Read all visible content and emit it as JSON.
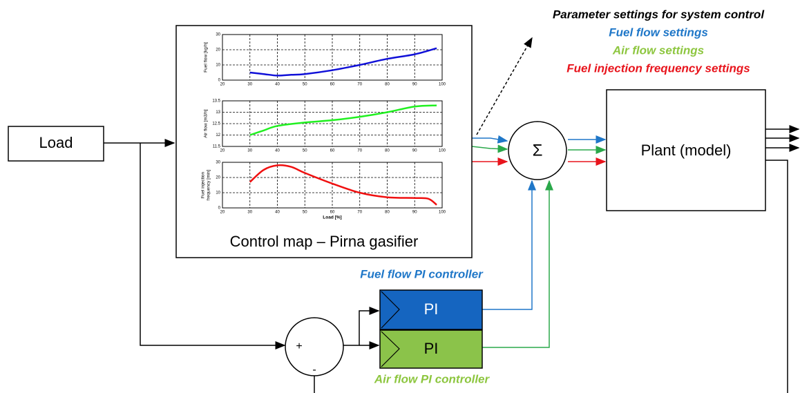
{
  "load": "Load",
  "plant": "Plant (model)",
  "sum_symbol": "Σ",
  "plus": "+",
  "minus": "-",
  "settings": {
    "title": "Parameter settings for system control",
    "fuel": "Fuel flow settings",
    "air": "Air flow settings",
    "injection": "Fuel injection frequency settings"
  },
  "controllers": {
    "fuel_box": "PI",
    "fuel_label": "Fuel flow PI controller",
    "air_box": "PI",
    "air_label": "Air flow PI controller"
  },
  "control_map": {
    "title": "Control map – Pirna gasifier",
    "charts": [
      {
        "type": "line",
        "ylabel": [
          "Fuel flow [kg/h]"
        ],
        "color": "#1010d8",
        "xlim": [
          20,
          100
        ],
        "xticks": [
          20,
          30,
          40,
          50,
          60,
          70,
          80,
          90,
          100
        ],
        "ylim": [
          0,
          30
        ],
        "yticks": [
          0,
          10,
          20,
          30
        ],
        "grid": true,
        "x": [
          30,
          35,
          40,
          45,
          50,
          60,
          70,
          80,
          90,
          98
        ],
        "values": [
          5,
          4,
          3,
          3.5,
          4,
          6.5,
          10,
          14,
          17,
          21
        ]
      },
      {
        "type": "line",
        "ylabel": [
          "Air flow [m3/h]"
        ],
        "color": "#20f020",
        "xlim": [
          20,
          100
        ],
        "xticks": [
          20,
          30,
          40,
          50,
          60,
          70,
          80,
          90,
          100
        ],
        "ylim": [
          11.5,
          13.5
        ],
        "yticks": [
          11.5,
          12,
          12.5,
          13,
          13.5
        ],
        "grid": true,
        "x": [
          30,
          35,
          40,
          50,
          60,
          70,
          80,
          90,
          98
        ],
        "values": [
          12.0,
          12.2,
          12.4,
          12.55,
          12.65,
          12.8,
          13.0,
          13.25,
          13.3
        ]
      },
      {
        "type": "line",
        "ylabel": [
          "Fuel injection",
          "frequency [min]"
        ],
        "xlabel": "Load [%]",
        "color": "#f01010",
        "xlim": [
          20,
          100
        ],
        "xticks": [
          20,
          30,
          40,
          50,
          60,
          70,
          80,
          90,
          100
        ],
        "ylim": [
          0,
          30
        ],
        "yticks": [
          0,
          10,
          20,
          30
        ],
        "grid": true,
        "x": [
          30,
          35,
          40,
          45,
          50,
          60,
          70,
          80,
          90,
          95,
          98
        ],
        "values": [
          17,
          25,
          28,
          27,
          23,
          16,
          10,
          7,
          6.5,
          6,
          2
        ]
      }
    ]
  }
}
